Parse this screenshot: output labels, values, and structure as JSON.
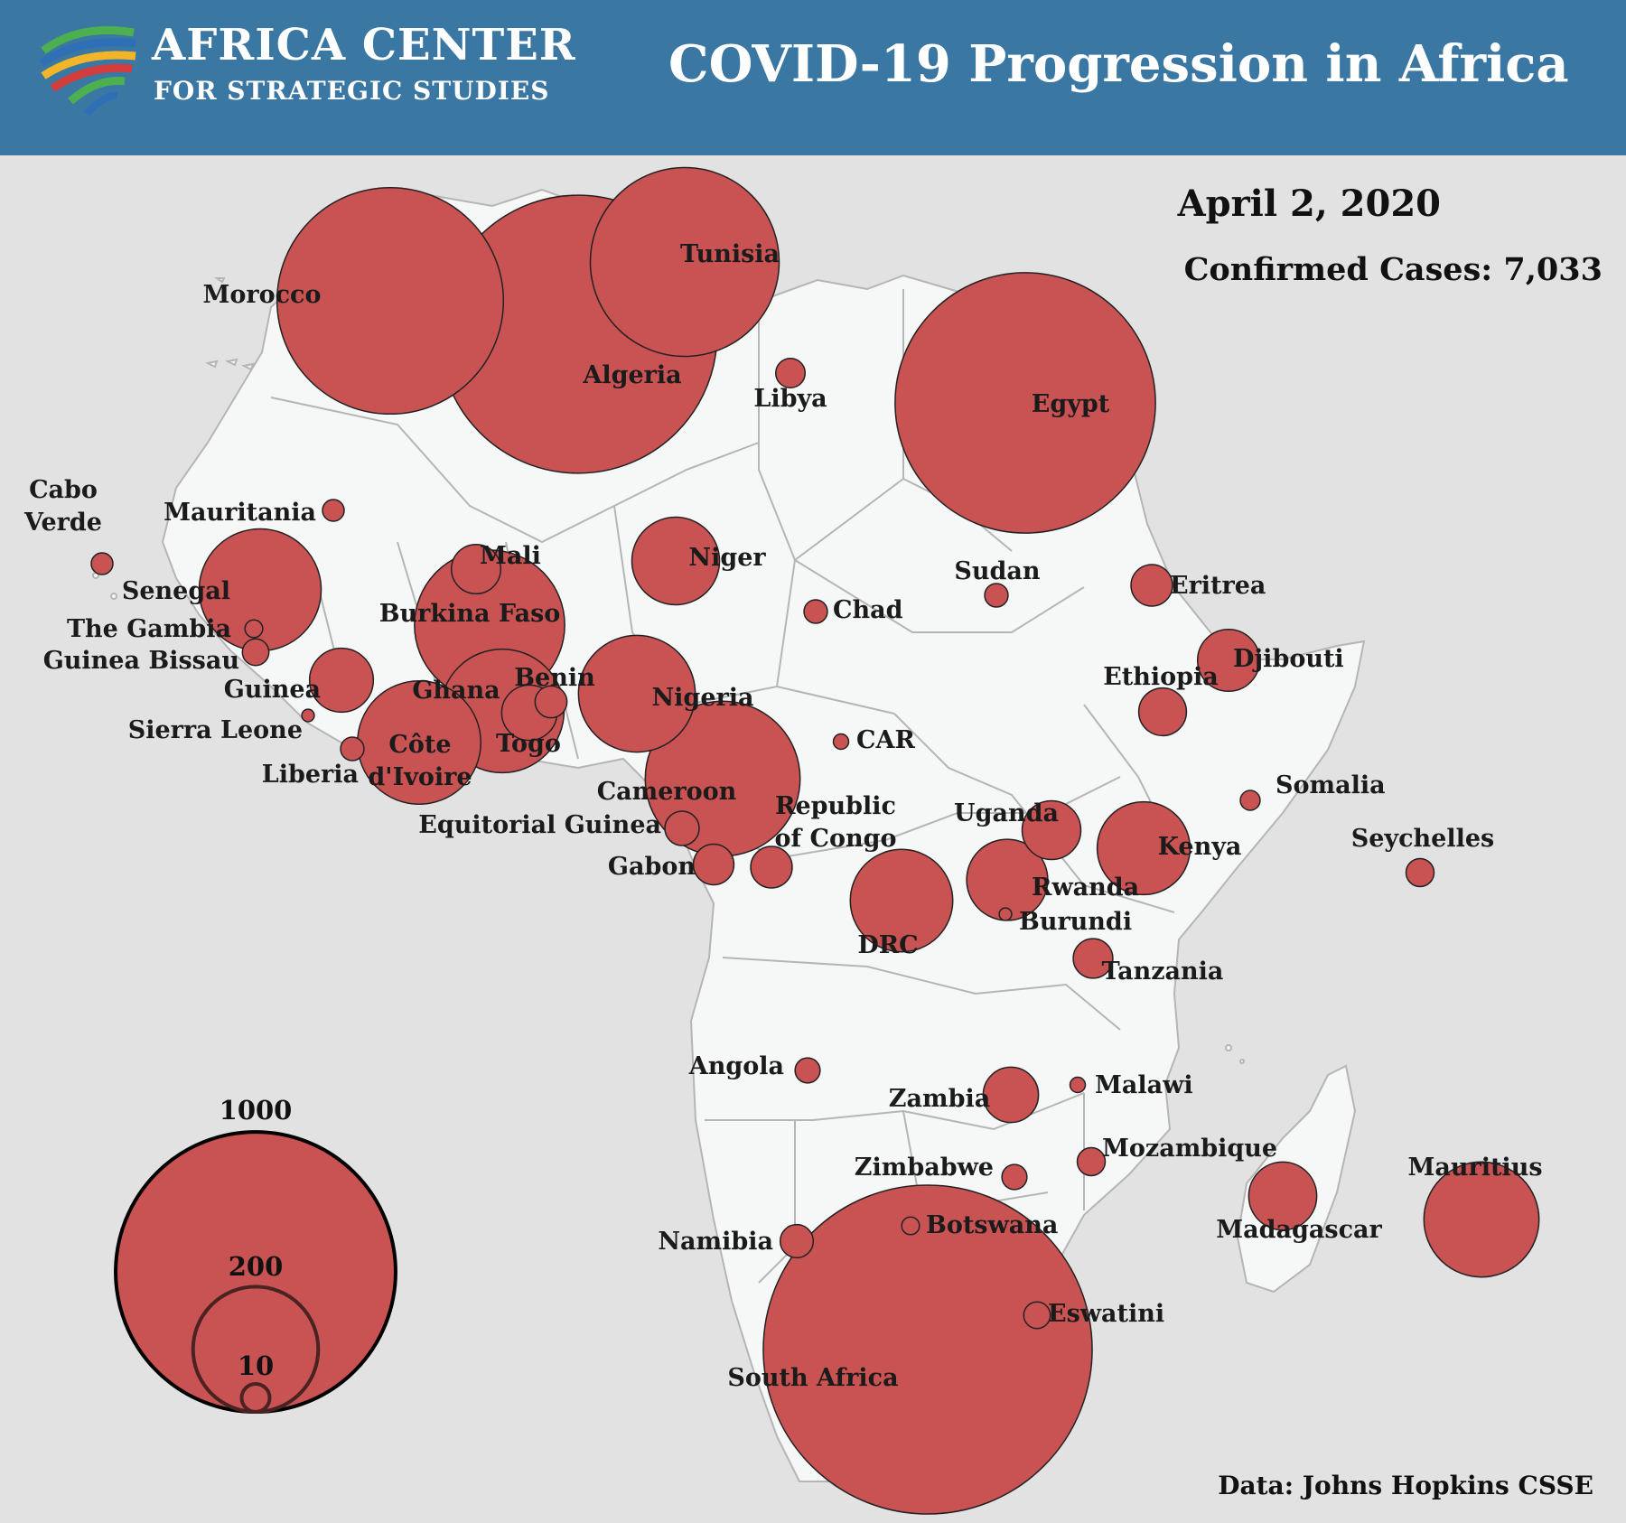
{
  "header": {
    "org_line1": "AFRICA CENTER",
    "org_line2": "FOR STRATEGIC STUDIES",
    "title": "COVID-19 Progression in Africa",
    "background_color": "#3a77a3"
  },
  "info": {
    "date": "April 2, 2020",
    "confirmed_cases": "Confirmed Cases: 7,033",
    "source": "Data: Johns Hopkins CSSE"
  },
  "style": {
    "bubble_color": "#c95253",
    "land_color": "#f6f7f7",
    "sea_color": "#e2e2e2"
  },
  "legend": {
    "label_1000": "1000",
    "label_200": "200",
    "label_10": "10"
  },
  "countries": [
    {
      "name": "Morocco",
      "label": "Morocco",
      "cases": 654
    },
    {
      "name": "Algeria",
      "label": "Algeria",
      "cases": 986
    },
    {
      "name": "Tunisia",
      "label": "Tunisia",
      "cases": 455
    },
    {
      "name": "Libya",
      "label": "Libya",
      "cases": 11
    },
    {
      "name": "Egypt",
      "label": "Egypt",
      "cases": 865
    },
    {
      "name": "Mauritania",
      "label": "Mauritania",
      "cases": 6
    },
    {
      "name": "Cabo Verde",
      "label": "Cabo Verde",
      "cases": 6
    },
    {
      "name": "Senegal",
      "label": "Senegal",
      "cases": 190
    },
    {
      "name": "The Gambia",
      "label": "The Gambia",
      "cases": 4
    },
    {
      "name": "Guinea Bissau",
      "label": "Guinea Bissau",
      "cases": 9
    },
    {
      "name": "Guinea",
      "label": "Guinea",
      "cases": 52
    },
    {
      "name": "Sierra Leone",
      "label": "Sierra Leone",
      "cases": 2
    },
    {
      "name": "Liberia",
      "label": "Liberia",
      "cases": 7
    },
    {
      "name": "Mali",
      "label": "Mali",
      "cases": 31
    },
    {
      "name": "Burkina Faso",
      "label": "Burkina Faso",
      "cases": 288
    },
    {
      "name": "Côte d'Ivoire",
      "label": "Côte d'Ivoire",
      "cases": 194
    },
    {
      "name": "Ghana",
      "label": "Ghana",
      "cases": 195
    },
    {
      "name": "Togo",
      "label": "Togo",
      "cases": 39
    },
    {
      "name": "Benin",
      "label": "Benin",
      "cases": 13
    },
    {
      "name": "Niger",
      "label": "Niger",
      "cases": 98
    },
    {
      "name": "Nigeria",
      "label": "Nigeria",
      "cases": 174
    },
    {
      "name": "Chad",
      "label": "Chad",
      "cases": 7
    },
    {
      "name": "Sudan",
      "label": "Sudan",
      "cases": 7
    },
    {
      "name": "Eritrea",
      "label": "Eritrea",
      "cases": 22
    },
    {
      "name": "Djibouti",
      "label": "Djibouti",
      "cases": 49
    },
    {
      "name": "Ethiopia",
      "label": "Ethiopia",
      "cases": 29
    },
    {
      "name": "Somalia",
      "label": "Somalia",
      "cases": 5
    },
    {
      "name": "CAR",
      "label": "CAR",
      "cases": 3
    },
    {
      "name": "Cameroon",
      "label": "Cameroon",
      "cases": 306
    },
    {
      "name": "Equitorial Guinea",
      "label": "Equitorial Guinea",
      "cases": 15
    },
    {
      "name": "Gabon",
      "label": "Gabon",
      "cases": 21
    },
    {
      "name": "Republic of Congo",
      "label": "Republic of Congo",
      "cases": 22
    },
    {
      "name": "DRC",
      "label": "DRC",
      "cases": 134
    },
    {
      "name": "Uganda",
      "label": "Uganda",
      "cases": 44
    },
    {
      "name": "Rwanda",
      "label": "Rwanda",
      "cases": 84
    },
    {
      "name": "Burundi",
      "label": "Burundi",
      "cases": 2
    },
    {
      "name": "Kenya",
      "label": "Kenya",
      "cases": 110
    },
    {
      "name": "Seychelles",
      "label": "Seychelles",
      "cases": 10
    },
    {
      "name": "Tanzania",
      "label": "Tanzania",
      "cases": 20
    },
    {
      "name": "Angola",
      "label": "Angola",
      "cases": 8
    },
    {
      "name": "Zambia",
      "label": "Zambia",
      "cases": 39
    },
    {
      "name": "Malawi",
      "label": "Malawi",
      "cases": 3
    },
    {
      "name": "Mozambique",
      "label": "Mozambique",
      "cases": 10
    },
    {
      "name": "Zimbabwe",
      "label": "Zimbabwe",
      "cases": 8
    },
    {
      "name": "Botswana",
      "label": "Botswana",
      "cases": 4
    },
    {
      "name": "Namibia",
      "label": "Namibia",
      "cases": 14
    },
    {
      "name": "Eswatini",
      "label": "Eswatini",
      "cases": 9
    },
    {
      "name": "South Africa",
      "label": "South Africa",
      "cases": 1380
    },
    {
      "name": "Madagascar",
      "label": "Madagascar",
      "cases": 59
    },
    {
      "name": "Mauritius",
      "label": "Mauritius",
      "cases": 169
    }
  ]
}
